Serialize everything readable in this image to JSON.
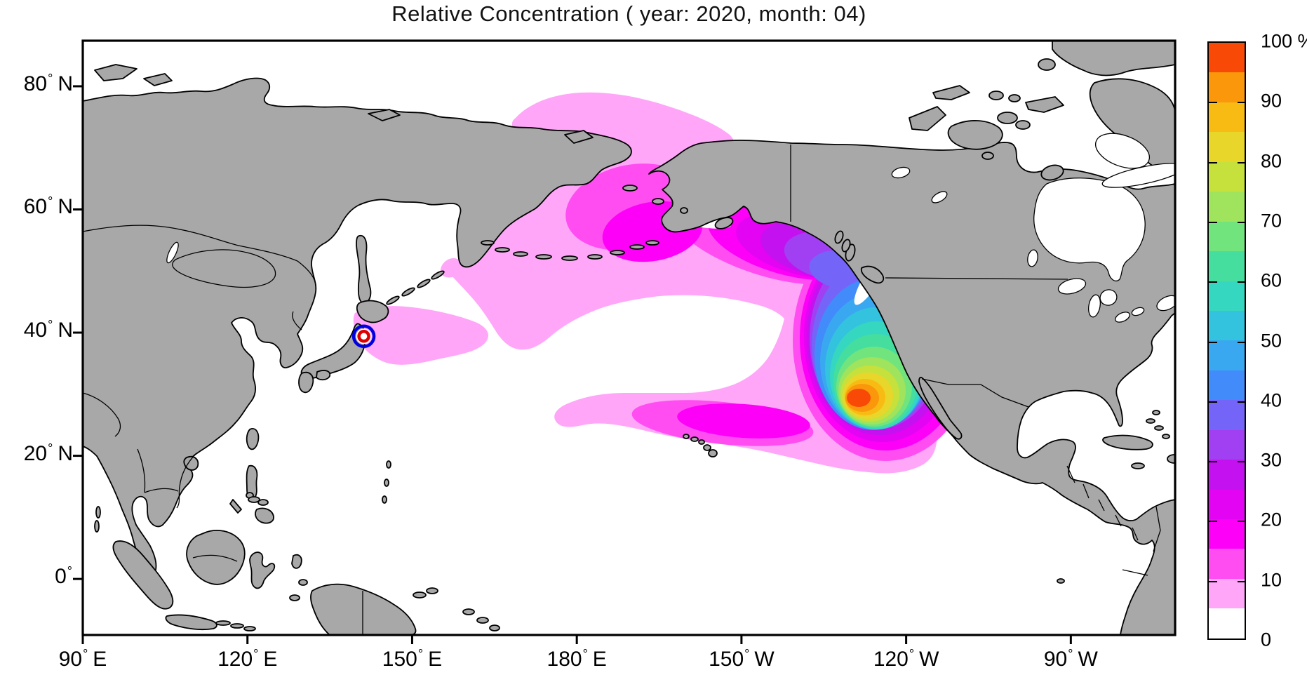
{
  "chart_data": {
    "type": "heatmap",
    "title": "Relative Concentration ( year: 2020, month: 04)",
    "variable": "Relative Concentration",
    "unit": "%",
    "year": "2020",
    "month": "04",
    "projection": "equidistant cylindrical (lon/lat)",
    "lon_range": [
      90,
      289
    ],
    "lat_range": [
      -9.1,
      87.4
    ],
    "grid": false,
    "legend_position": "right colorbar",
    "x_axis": {
      "ticks": [
        {
          "label": "90° E",
          "num": "90",
          "hemi": "E",
          "lon": 90
        },
        {
          "label": "120° E",
          "num": "120",
          "hemi": "E",
          "lon": 120
        },
        {
          "label": "150° E",
          "num": "150",
          "hemi": "E",
          "lon": 150
        },
        {
          "label": "180° E",
          "num": "180",
          "hemi": "E",
          "lon": 180
        },
        {
          "label": "150° W",
          "num": "150",
          "hemi": "W",
          "lon": 210
        },
        {
          "label": "120° W",
          "num": "120",
          "hemi": "W",
          "lon": 240
        },
        {
          "label": "90° W",
          "num": "90",
          "hemi": "W",
          "lon": 270
        }
      ]
    },
    "y_axis": {
      "ticks": [
        {
          "label": "80° N",
          "num": "80",
          "hemi": "N",
          "lat": 80
        },
        {
          "label": "60° N",
          "num": "60",
          "hemi": "N",
          "lat": 60
        },
        {
          "label": "40° N",
          "num": "40",
          "hemi": "N",
          "lat": 40
        },
        {
          "label": "20° N",
          "num": "20",
          "hemi": "N",
          "lat": 20
        },
        {
          "label": "0°",
          "num": "0",
          "hemi": "",
          "lat": 0
        }
      ]
    },
    "colorbar": {
      "range": [
        0,
        100
      ],
      "band_step": 5,
      "unit_label_on_top_tick": "%",
      "tick_labels": [
        {
          "value": 100,
          "label": "100 %"
        },
        {
          "value": 90,
          "label": "90"
        },
        {
          "value": 80,
          "label": "80"
        },
        {
          "value": 70,
          "label": "70"
        },
        {
          "value": 60,
          "label": "60"
        },
        {
          "value": 50,
          "label": "50"
        },
        {
          "value": 40,
          "label": "40"
        },
        {
          "value": 30,
          "label": "30"
        },
        {
          "value": 20,
          "label": "20"
        },
        {
          "value": 10,
          "label": "10"
        },
        {
          "value": 0,
          "label": "0"
        }
      ],
      "levels": [
        {
          "min": 0,
          "max": 5,
          "color": "#FFFFFF"
        },
        {
          "min": 5,
          "max": 10,
          "color": "#FFA6F9"
        },
        {
          "min": 10,
          "max": 15,
          "color": "#FF4DF2"
        },
        {
          "min": 15,
          "max": 20,
          "color": "#FD00F8"
        },
        {
          "min": 20,
          "max": 25,
          "color": "#E204F2"
        },
        {
          "min": 25,
          "max": 30,
          "color": "#C312EF"
        },
        {
          "min": 30,
          "max": 35,
          "color": "#A13FF3"
        },
        {
          "min": 35,
          "max": 40,
          "color": "#7464F8"
        },
        {
          "min": 40,
          "max": 45,
          "color": "#428BFA"
        },
        {
          "min": 45,
          "max": 50,
          "color": "#3AA8F0"
        },
        {
          "min": 50,
          "max": 55,
          "color": "#33C3DF"
        },
        {
          "min": 55,
          "max": 60,
          "color": "#36D7C0"
        },
        {
          "min": 60,
          "max": 65,
          "color": "#45DE9E"
        },
        {
          "min": 65,
          "max": 70,
          "color": "#72E47D"
        },
        {
          "min": 70,
          "max": 75,
          "color": "#A0E35C"
        },
        {
          "min": 75,
          "max": 80,
          "color": "#C7E13C"
        },
        {
          "min": 80,
          "max": 85,
          "color": "#E9D62A"
        },
        {
          "min": 85,
          "max": 90,
          "color": "#F8BB14"
        },
        {
          "min": 90,
          "max": 95,
          "color": "#FA970B"
        },
        {
          "min": 95,
          "max": 100,
          "color": "#F94906"
        }
      ]
    },
    "source_marker": {
      "lon": 141.2,
      "lat": 39.4,
      "outer_ring_color": "#0000E0",
      "inner_ring_color": "#DD0000"
    },
    "features": [
      {
        "name": "primary concentration maximum",
        "lon": -128.5,
        "lat": 29.4,
        "percent_band": "95-100"
      },
      {
        "name": "high concentration column along North American coast",
        "lon_span": "140W-118W",
        "lat_span": "24N-57N",
        "percent_band": "30-95"
      },
      {
        "name": "dispersal arm along Gulf of Alaska, Aleutians and Bering Sea",
        "percent_band": "5-20"
      },
      {
        "name": "low concentration patch over Chukchi Sea north of Bering Strait",
        "percent_band": "5-10"
      },
      {
        "name": "southwestern arm near Hawaii",
        "lat_span": "20N-27N",
        "percent_band": "5-15"
      },
      {
        "name": "patch east of Japan adjacent to release marker",
        "percent_band": "5-10"
      }
    ]
  },
  "colors": {
    "land": "#A8A8A8",
    "ocean": "#FFFFFF",
    "coastline": "#000000",
    "frame": "#000000"
  }
}
